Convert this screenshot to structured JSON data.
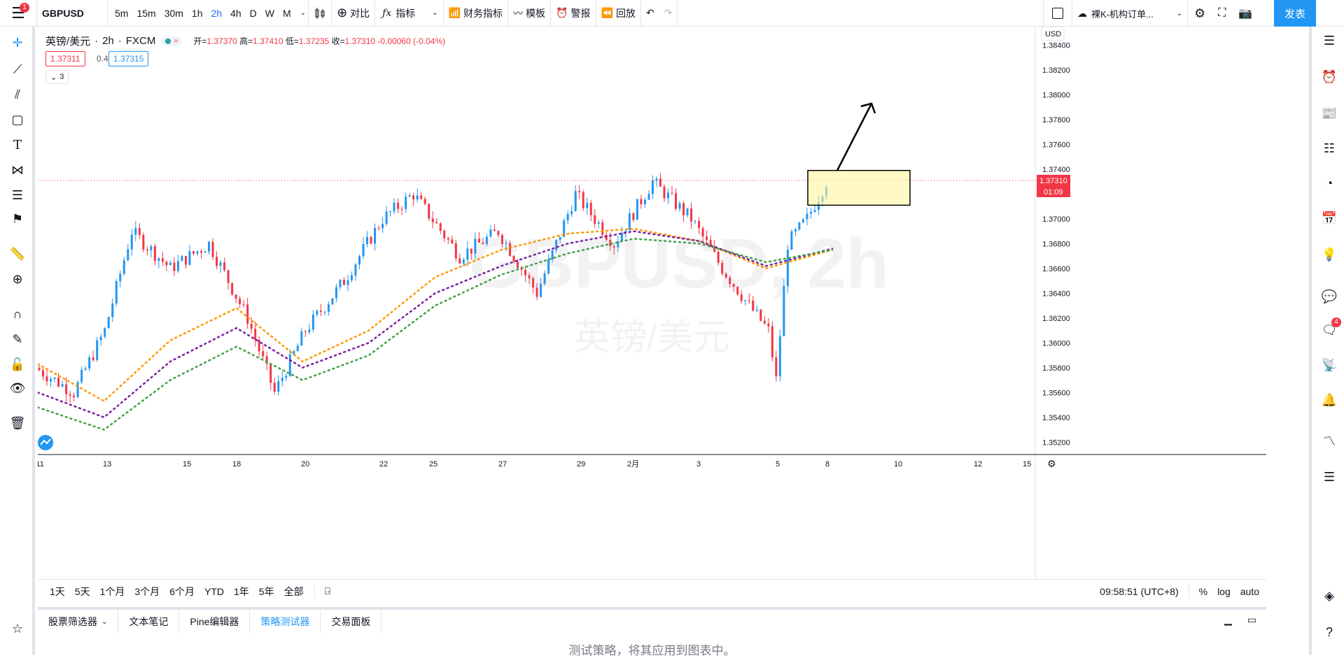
{
  "topbar": {
    "menu_badge": "1",
    "symbol": "GBPUSD",
    "intervals": [
      "5m",
      "15m",
      "30m",
      "1h",
      "2h",
      "4h",
      "D",
      "W",
      "M"
    ],
    "active_interval": "2h",
    "compare_label": "对比",
    "indicators_label": "指标",
    "financials_label": "财务指标",
    "templates_label": "模板",
    "alert_label": "警报",
    "replay_label": "回放",
    "layout_name": "裸K-机构订单...",
    "publish_label": "发表"
  },
  "legend": {
    "name": "英镑/美元",
    "interval": "2h",
    "exchange": "FXCM",
    "open_label": "开=",
    "open": "1.37370",
    "high_label": "高=",
    "high": "1.37410",
    "low_label": "低=",
    "low": "1.37235",
    "close_label": "收=",
    "close": "1.37310",
    "change": "-0.00060 (-0.04%)",
    "bid": "1.37311",
    "spread": "0.4",
    "ask": "1.37315",
    "collapsed_count": "3"
  },
  "watermark": {
    "symbol": "GBPUSD, 2h",
    "description": "英镑/美元"
  },
  "price_axis": {
    "currency": "USD",
    "ticks": [
      "1.38400",
      "1.38200",
      "1.38000",
      "1.37800",
      "1.37600",
      "1.37400",
      "1.37000",
      "1.36800",
      "1.36600",
      "1.36400",
      "1.36200",
      "1.36000",
      "1.35800",
      "1.35600",
      "1.35400",
      "1.35200"
    ],
    "last_price": "1.37310",
    "countdown": "01:09"
  },
  "time_axis": {
    "ticks": [
      "11",
      "13",
      "15",
      "18",
      "20",
      "22",
      "25",
      "27",
      "29",
      "2月",
      "3",
      "5",
      "8",
      "10",
      "12",
      "15"
    ]
  },
  "bottombar": {
    "ranges": [
      "1天",
      "5天",
      "1个月",
      "3个月",
      "6个月",
      "YTD",
      "1年",
      "5年",
      "全部"
    ],
    "clock": "09:58:51 (UTC+8)",
    "percent_label": "%",
    "log_label": "log",
    "auto_label": "auto"
  },
  "panel": {
    "tabs": [
      "股票筛选器",
      "文本笔记",
      "Pine编辑器",
      "策略测试器",
      "交易面板"
    ],
    "active_tab": "策略测试器",
    "message": "测试策略，将其应用到图表中。"
  },
  "right_sidebar": {
    "notifications_badge": "4"
  },
  "colors": {
    "up": "#2196f3",
    "down": "#f23645",
    "ma_orange": "#ff9800",
    "ma_purple": "#7b1fa2",
    "ma_green": "#43a047",
    "accent": "#2196f3"
  },
  "chart_data": {
    "type": "candlestick",
    "symbol": "GBPUSD",
    "interval": "2h",
    "y_range": [
      1.351,
      1.3855
    ],
    "last_price": 1.3731,
    "x_dates": [
      "11",
      "13",
      "15",
      "18",
      "20",
      "22",
      "25",
      "27",
      "29",
      "2月",
      "3",
      "5",
      "8",
      "10",
      "12",
      "15"
    ],
    "series": [
      {
        "name": "orange",
        "values": [
          1.3583,
          1.3553,
          1.3602,
          1.3628,
          1.3585,
          1.361,
          1.3653,
          1.3675,
          1.3688,
          1.3692,
          1.3682,
          1.366,
          1.3675
        ]
      },
      {
        "name": "purple",
        "values": [
          1.356,
          1.354,
          1.3585,
          1.3612,
          1.358,
          1.36,
          1.364,
          1.3662,
          1.368,
          1.369,
          1.3682,
          1.3662,
          1.3676
        ]
      },
      {
        "name": "green",
        "values": [
          1.3548,
          1.353,
          1.357,
          1.3597,
          1.357,
          1.359,
          1.363,
          1.3655,
          1.3672,
          1.3684,
          1.368,
          1.3665,
          1.3675
        ]
      }
    ],
    "annotations": {
      "zone": {
        "y_top": 1.3739,
        "y_bottom": 1.3711
      },
      "arrow": "up"
    }
  }
}
